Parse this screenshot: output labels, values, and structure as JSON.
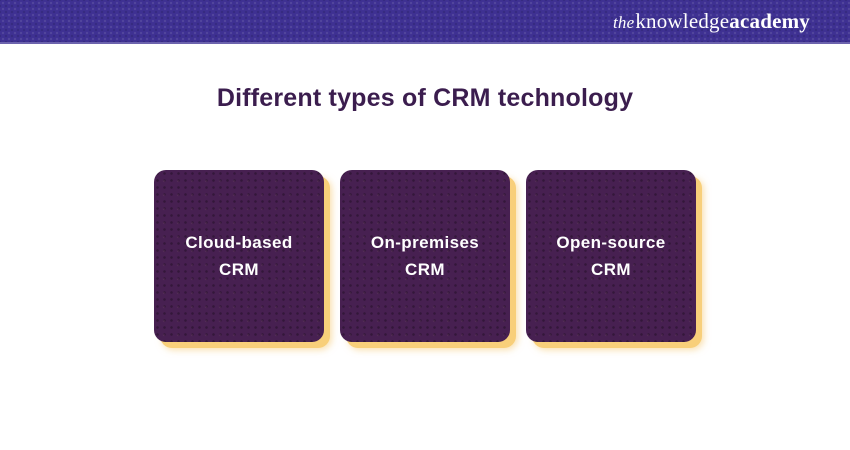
{
  "header": {
    "logo": {
      "prefix": "the",
      "word1": "knowledge",
      "word2": "academy"
    }
  },
  "main": {
    "title": "Different types of CRM technology"
  },
  "cards": [
    {
      "lines": [
        "Cloud-based",
        "CRM"
      ]
    },
    {
      "lines": [
        "On-premises",
        "CRM"
      ]
    },
    {
      "lines": [
        "Open-source",
        "CRM"
      ]
    }
  ],
  "colors": {
    "banner_background": "#3e3192",
    "banner_edge": "#6c63ad",
    "title_text": "#3b1d4e",
    "card_background": "#472051",
    "card_shadow": "#f8cf7a",
    "card_text": "#ffffff",
    "logo_text": "#ffffff",
    "page_background": "#ffffff"
  }
}
